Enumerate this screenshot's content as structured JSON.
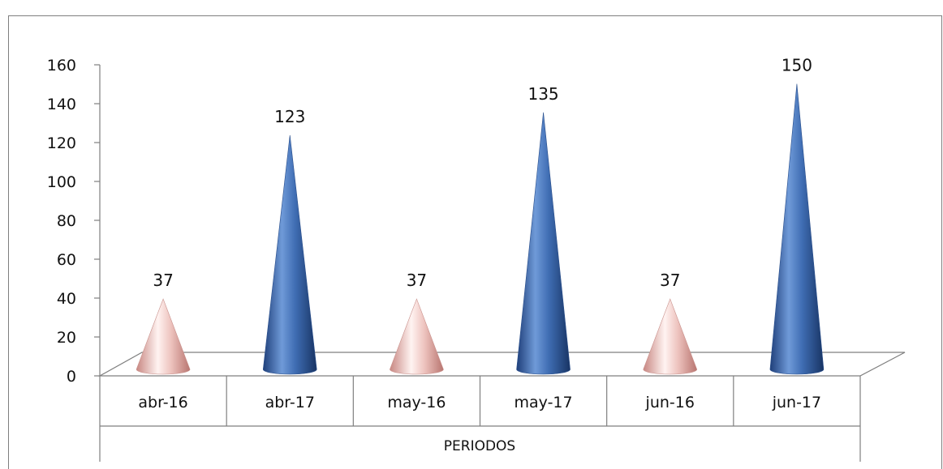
{
  "chart_data": {
    "type": "bar",
    "shape": "cone",
    "categories": [
      "abr-16",
      "abr-17",
      "may-16",
      "may-17",
      "jun-16",
      "jun-17"
    ],
    "values": [
      37,
      123,
      37,
      135,
      37,
      150
    ],
    "point_colors": [
      "#e9b3ae",
      "#3f6db3",
      "#e9b3ae",
      "#3f6db3",
      "#e9b3ae",
      "#3f6db3"
    ],
    "data_labels": [
      "37",
      "123",
      "37",
      "135",
      "37",
      "150"
    ],
    "yticks": [
      "0",
      "20",
      "40",
      "60",
      "80",
      "100",
      "120",
      "140",
      "160"
    ],
    "ylim": [
      0,
      160
    ],
    "xlabel": "PERIODOS",
    "title": "",
    "ylabel": "",
    "grid": false,
    "legend": "none"
  }
}
